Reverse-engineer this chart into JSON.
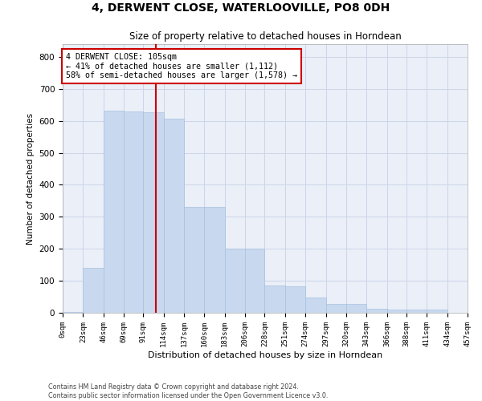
{
  "title1": "4, DERWENT CLOSE, WATERLOOVILLE, PO8 0DH",
  "title2": "Size of property relative to detached houses in Horndean",
  "xlabel": "Distribution of detached houses by size in Horndean",
  "ylabel": "Number of detached properties",
  "footer1": "Contains HM Land Registry data © Crown copyright and database right 2024.",
  "footer2": "Contains public sector information licensed under the Open Government Licence v3.0.",
  "annotation_line1": "4 DERWENT CLOSE: 105sqm",
  "annotation_line2": "← 41% of detached houses are smaller (1,112)",
  "annotation_line3": "58% of semi-detached houses are larger (1,578) →",
  "bar_color": "#c8d9ef",
  "bar_edge_color": "#a8c0de",
  "grid_color": "#cdd5e8",
  "vline_color": "#cc0000",
  "annotation_box_color": "#cc0000",
  "bin_edges": [
    0,
    23,
    46,
    69,
    91,
    114,
    137,
    160,
    183,
    206,
    228,
    251,
    274,
    297,
    320,
    343,
    366,
    388,
    411,
    434,
    457
  ],
  "bin_labels": [
    "0sqm",
    "23sqm",
    "46sqm",
    "69sqm",
    "91sqm",
    "114sqm",
    "137sqm",
    "160sqm",
    "183sqm",
    "206sqm",
    "228sqm",
    "251sqm",
    "274sqm",
    "297sqm",
    "320sqm",
    "343sqm",
    "366sqm",
    "388sqm",
    "411sqm",
    "434sqm",
    "457sqm"
  ],
  "bar_heights": [
    3,
    140,
    632,
    630,
    627,
    608,
    332,
    330,
    200,
    200,
    85,
    83,
    48,
    28,
    28,
    12,
    10,
    10,
    10,
    0,
    3
  ],
  "property_x": 105,
  "ylim": [
    0,
    840
  ],
  "xlim": [
    0,
    457
  ],
  "figsize": [
    6.0,
    5.0
  ],
  "dpi": 100
}
